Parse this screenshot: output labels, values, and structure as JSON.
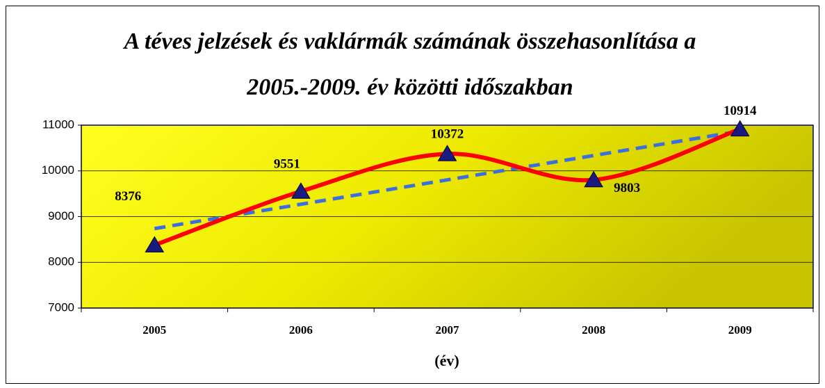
{
  "chart_data": {
    "type": "line",
    "title": [
      "A téves jelzések és vaklármák számának összehasonlítása a",
      "2005.-2009. év közötti időszakban"
    ],
    "x_label": "(év)",
    "categories": [
      "2005",
      "2006",
      "2007",
      "2008",
      "2009"
    ],
    "series": [
      {
        "color": "#ff0000",
        "smooth": true,
        "marker": "triangle",
        "marker_color": "#1a1a80",
        "values": [
          8376,
          9551,
          10372,
          9803,
          10914
        ]
      },
      {
        "color": "#3b6fe0",
        "dashed": true,
        "values": [
          8738,
          9270,
          9803,
          10336,
          10869
        ]
      }
    ],
    "ylim": [
      7000,
      11000
    ],
    "yticks": [
      7000,
      8000,
      9000,
      10000,
      11000
    ],
    "grid": true
  }
}
